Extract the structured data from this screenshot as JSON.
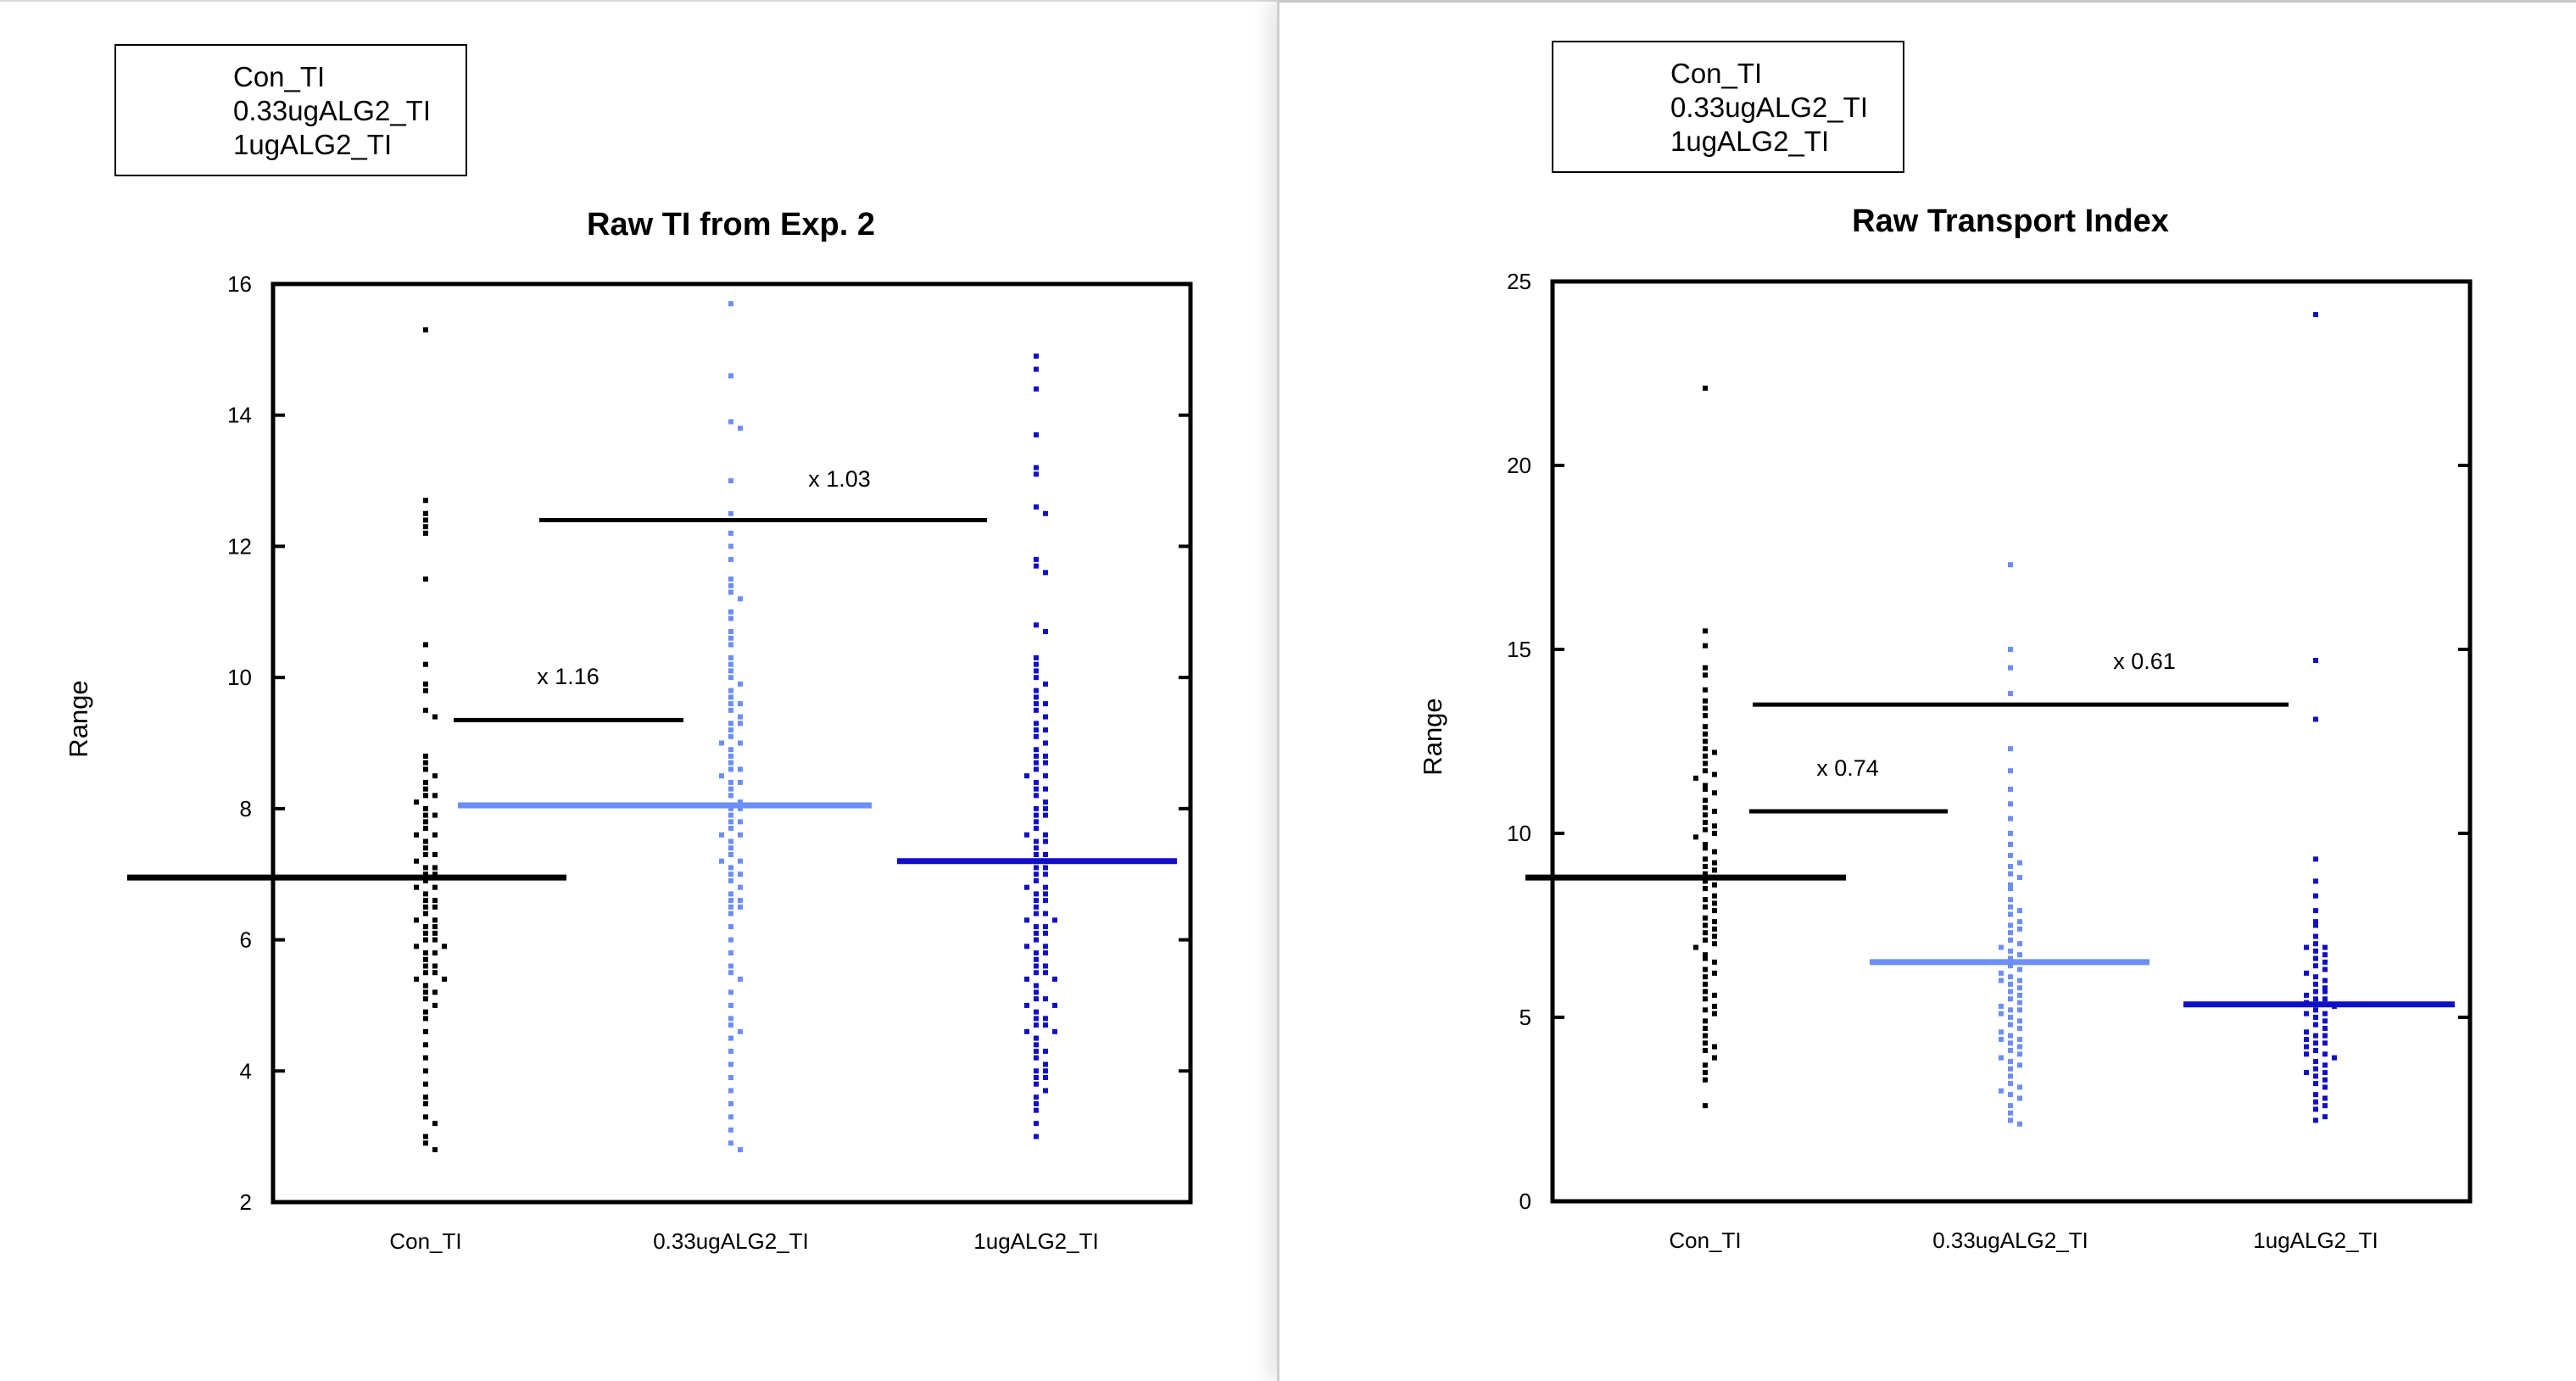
{
  "chart_data": [
    {
      "type": "scatter",
      "title": "Raw TI from Exp. 2",
      "ylabel": "Range",
      "xlabel": "",
      "ylim": [
        2,
        16
      ],
      "yticks": [
        2,
        4,
        6,
        8,
        10,
        12,
        14,
        16
      ],
      "categories": [
        "Con_TI",
        "0.33ugALG2_TI",
        "1ugALG2_TI"
      ],
      "legend_position": "top-left",
      "grid": false,
      "series": [
        {
          "name": "Con_TI",
          "color": "#000000",
          "mean": 6.95,
          "values": [
            15.3,
            12.7,
            12.5,
            12.4,
            12.3,
            12.2,
            11.5,
            10.5,
            10.2,
            9.9,
            9.8,
            9.5,
            9.4,
            8.8,
            8.7,
            8.6,
            8.5,
            8.4,
            8.3,
            8.2,
            8.1,
            8.0,
            7.9,
            7.8,
            7.7,
            7.6,
            7.5,
            7.4,
            7.3,
            7.2,
            7.1,
            7.0,
            6.9,
            6.8,
            6.7,
            6.6,
            6.5,
            6.4,
            6.3,
            6.2,
            6.1,
            6.0,
            5.9,
            5.8,
            5.7,
            5.6,
            5.5,
            5.4,
            5.3,
            5.2,
            5.1,
            5.0,
            4.9,
            4.8,
            4.6,
            4.4,
            4.2,
            4.0,
            3.8,
            3.6,
            3.5,
            3.3,
            3.2,
            3.0,
            2.9,
            2.8,
            8.2,
            7.6,
            7.3,
            7.0,
            6.8,
            6.5,
            6.3,
            6.1,
            6.0,
            5.8,
            5.6,
            5.4,
            5.2,
            7.9,
            7.1,
            6.6,
            6.2,
            5.9,
            5.5
          ]
        },
        {
          "name": "0.33ugALG2_TI",
          "color": "#6b8ef7",
          "mean": 8.05,
          "values": [
            15.7,
            14.6,
            13.9,
            13.8,
            13.0,
            12.5,
            12.2,
            12.0,
            11.8,
            11.5,
            11.4,
            11.3,
            11.2,
            11.0,
            10.9,
            10.7,
            10.5,
            10.3,
            10.2,
            10.0,
            9.9,
            9.8,
            9.7,
            9.6,
            9.5,
            9.4,
            9.3,
            9.2,
            9.1,
            9.0,
            8.9,
            8.8,
            8.7,
            8.6,
            8.5,
            8.4,
            8.3,
            8.2,
            8.1,
            8.0,
            7.9,
            7.8,
            7.7,
            7.6,
            7.5,
            7.4,
            7.3,
            7.2,
            7.1,
            7.0,
            6.9,
            6.8,
            6.7,
            6.6,
            6.5,
            6.4,
            6.2,
            6.0,
            5.8,
            5.6,
            5.5,
            5.4,
            5.2,
            5.0,
            4.8,
            4.7,
            4.6,
            4.5,
            4.3,
            4.1,
            3.9,
            3.7,
            3.5,
            3.3,
            3.1,
            2.9,
            2.8,
            10.1,
            9.6,
            9.0,
            8.6,
            8.0,
            7.6,
            7.0,
            6.6,
            10.6,
            9.3,
            8.4,
            7.8,
            7.2,
            6.5
          ]
        },
        {
          "name": "1ugALG2_TI",
          "color": "#1010c8",
          "mean": 7.2,
          "values": [
            14.9,
            14.7,
            14.4,
            13.7,
            13.2,
            13.1,
            12.6,
            12.5,
            11.8,
            11.7,
            11.6,
            10.8,
            10.7,
            10.3,
            10.2,
            10.1,
            10.0,
            9.9,
            9.8,
            9.7,
            9.6,
            9.5,
            9.4,
            9.3,
            9.2,
            9.1,
            9.0,
            8.9,
            8.8,
            8.7,
            8.6,
            8.5,
            8.4,
            8.3,
            8.2,
            8.1,
            8.0,
            7.9,
            7.8,
            7.7,
            7.6,
            7.5,
            7.4,
            7.3,
            7.2,
            7.1,
            7.0,
            6.9,
            6.8,
            6.7,
            6.6,
            6.5,
            6.4,
            6.3,
            6.2,
            6.1,
            6.0,
            5.9,
            5.8,
            5.7,
            5.6,
            5.5,
            5.4,
            5.3,
            5.2,
            5.1,
            5.0,
            4.9,
            4.8,
            4.7,
            4.6,
            4.5,
            4.4,
            4.3,
            4.2,
            4.1,
            4.0,
            3.9,
            3.8,
            3.7,
            3.6,
            3.5,
            3.4,
            3.2,
            3.0,
            9.2,
            8.7,
            8.3,
            7.9,
            7.5,
            7.1,
            6.7,
            6.3,
            5.9,
            5.5,
            5.1,
            4.7,
            4.3,
            3.9,
            9.6,
            8.8,
            8.0,
            7.2,
            6.4,
            5.6,
            4.8,
            4.0,
            8.5,
            7.6,
            6.8,
            6.1,
            5.4,
            4.6,
            7.3,
            6.6,
            5.8,
            5.0,
            7.0,
            6.2
          ]
        }
      ],
      "annotations": [
        {
          "text": "x 1.16",
          "y": 9.35,
          "from": 0,
          "to": 1
        },
        {
          "text": "x 1.03",
          "y": 12.4,
          "from": 0,
          "to": 2
        }
      ]
    },
    {
      "type": "scatter",
      "title": "Raw Transport Index",
      "ylabel": "Range",
      "xlabel": "",
      "ylim": [
        0,
        25
      ],
      "yticks": [
        0,
        5,
        10,
        15,
        20,
        25
      ],
      "categories": [
        "Con_TI",
        "0.33ugALG2_TI",
        "1ugALG2_TI"
      ],
      "legend_position": "top-left",
      "grid": false,
      "series": [
        {
          "name": "Con_TI",
          "color": "#000000",
          "mean": 8.8,
          "values": [
            22.1,
            15.5,
            15.1,
            14.5,
            14.3,
            13.9,
            13.6,
            13.4,
            13.2,
            12.9,
            12.7,
            12.5,
            12.3,
            12.1,
            11.9,
            11.7,
            11.5,
            11.3,
            11.1,
            10.9,
            10.7,
            10.5,
            10.3,
            10.1,
            9.9,
            9.7,
            9.5,
            9.3,
            9.1,
            8.9,
            8.7,
            8.5,
            8.3,
            8.1,
            7.9,
            7.7,
            7.5,
            7.3,
            7.1,
            6.9,
            6.7,
            6.5,
            6.3,
            6.1,
            5.9,
            5.7,
            5.5,
            5.3,
            5.1,
            4.9,
            4.7,
            4.5,
            4.3,
            4.1,
            3.9,
            3.7,
            3.5,
            3.3,
            2.6,
            12.2,
            11.2,
            10.2,
            9.2,
            8.2,
            7.2,
            6.2,
            5.2,
            4.2,
            11.6,
            10.6,
            9.6,
            8.6,
            7.6,
            6.6,
            5.6,
            7.4,
            8.0,
            7.0,
            9.0,
            10.0
          ]
        },
        {
          "name": "0.33ugALG2_TI",
          "color": "#6b8ef7",
          "mean": 6.5,
          "values": [
            17.3,
            15.0,
            14.5,
            13.8,
            12.3,
            11.7,
            11.2,
            10.8,
            10.4,
            10.0,
            9.7,
            9.4,
            9.1,
            8.8,
            8.5,
            8.2,
            7.9,
            7.6,
            7.3,
            7.0,
            6.8,
            6.6,
            6.4,
            6.2,
            6.0,
            5.8,
            5.6,
            5.4,
            5.2,
            5.0,
            4.8,
            4.6,
            4.4,
            4.2,
            4.0,
            3.8,
            3.6,
            3.4,
            3.2,
            3.0,
            2.8,
            2.6,
            2.4,
            2.2,
            2.1,
            8.9,
            7.8,
            6.9,
            6.1,
            5.3,
            4.5,
            3.7,
            2.9,
            9.2,
            8.0,
            7.1,
            6.3,
            5.5,
            4.7,
            3.9,
            3.1,
            7.4,
            6.5,
            5.7,
            4.9,
            4.1,
            8.6,
            5.9,
            5.1,
            4.3,
            6.7,
            7.5,
            6.0,
            5.2,
            4.4
          ]
        },
        {
          "name": "1ugALG2_TI",
          "color": "#1010c8",
          "mean": 5.35,
          "values": [
            24.1,
            14.7,
            13.1,
            9.3,
            8.7,
            8.3,
            7.9,
            7.5,
            7.2,
            6.9,
            6.7,
            6.5,
            6.3,
            6.1,
            5.9,
            5.7,
            5.5,
            5.3,
            5.1,
            4.9,
            4.7,
            4.5,
            4.3,
            4.1,
            3.9,
            3.7,
            3.5,
            3.3,
            3.1,
            2.9,
            2.7,
            2.5,
            2.3,
            2.2,
            7.0,
            6.4,
            5.8,
            5.2,
            4.6,
            4.0,
            3.4,
            2.8,
            6.8,
            6.2,
            5.6,
            5.0,
            4.4,
            3.8,
            3.2,
            2.6,
            6.0,
            5.4,
            4.8,
            4.2,
            3.6,
            7.6,
            6.6,
            5.5,
            4.5,
            3.5,
            6.9,
            5.1,
            4.3,
            5.7,
            4.0
          ]
        }
      ],
      "annotations": [
        {
          "text": "x 0.74",
          "y": 10.6,
          "from": 0,
          "to": 1
        },
        {
          "text": "x 0.61",
          "y": 13.5,
          "from": 0,
          "to": 2
        }
      ]
    }
  ]
}
